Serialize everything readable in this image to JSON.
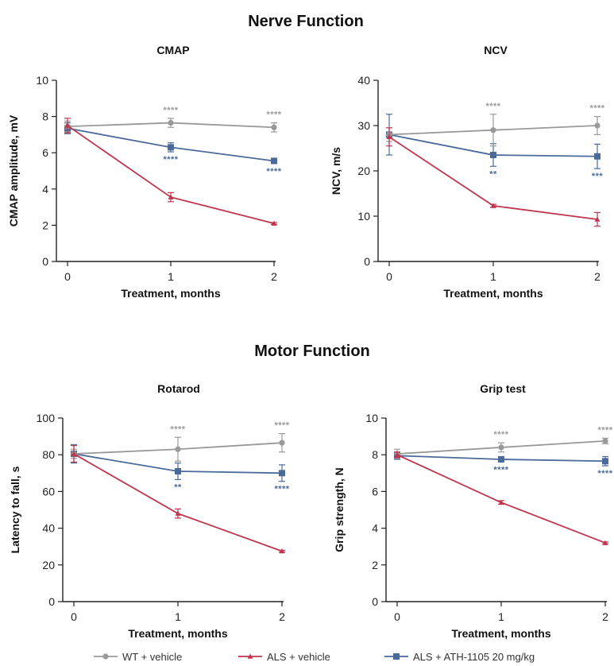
{
  "sections": [
    {
      "title": "Nerve Function"
    },
    {
      "title": "Motor Function"
    }
  ],
  "colors": {
    "wt": "#999999",
    "als": "#c0354e",
    "ath": "#4a6a9a"
  },
  "legend": [
    {
      "label": "WT + vehicle",
      "series": "wt",
      "marker": "circle"
    },
    {
      "label": "ALS + vehicle",
      "series": "als",
      "marker": "triangle"
    },
    {
      "label": "ALS + ATH-1105 20 mg/kg",
      "series": "ath",
      "marker": "square"
    }
  ],
  "chart_data": [
    {
      "type": "line",
      "title": "CMAP",
      "xlabel": "Treatment, months",
      "ylabel": "CMAP amplitude, mV",
      "x": [
        0,
        1,
        2
      ],
      "ylim": [
        0,
        10
      ],
      "yticks": [
        0,
        2,
        4,
        6,
        8,
        10
      ],
      "series": [
        {
          "name": "WT + vehicle",
          "key": "wt",
          "values": [
            7.45,
            7.65,
            7.4
          ],
          "errors": [
            0.3,
            0.25,
            0.25
          ],
          "significance": [
            "",
            "****",
            "****"
          ]
        },
        {
          "name": "ALS + vehicle",
          "key": "als",
          "values": [
            7.5,
            3.55,
            2.1
          ],
          "errors": [
            0.4,
            0.25,
            0.05
          ],
          "significance": [
            "",
            "",
            ""
          ]
        },
        {
          "name": "ALS + ATH-1105 20 mg/kg",
          "key": "ath",
          "values": [
            7.35,
            6.3,
            5.55
          ],
          "errors": [
            0.3,
            0.25,
            0.15
          ],
          "significance": [
            "",
            "****",
            "****"
          ]
        }
      ]
    },
    {
      "type": "line",
      "title": "NCV",
      "xlabel": "Treatment, months",
      "ylabel": "NCV, m/s",
      "x": [
        0,
        1,
        2
      ],
      "ylim": [
        0,
        40
      ],
      "yticks": [
        0,
        10,
        20,
        30,
        40
      ],
      "series": [
        {
          "name": "WT + vehicle",
          "key": "wt",
          "values": [
            28,
            29,
            30
          ],
          "errors": [
            1.5,
            3.5,
            2
          ],
          "significance": [
            "",
            "****",
            "****"
          ]
        },
        {
          "name": "ALS + vehicle",
          "key": "als",
          "values": [
            27.5,
            12.3,
            9.3
          ],
          "errors": [
            2,
            0.3,
            1.5
          ],
          "significance": [
            "",
            "",
            ""
          ]
        },
        {
          "name": "ALS + ATH-1105 20 mg/kg",
          "key": "ath",
          "values": [
            28,
            23.5,
            23.2
          ],
          "errors": [
            4.5,
            2.5,
            2.7
          ],
          "significance": [
            "",
            "**",
            "***"
          ]
        }
      ]
    },
    {
      "type": "line",
      "title": "Rotarod",
      "xlabel": "Treatment, months",
      "ylabel": "Latency to fall, s",
      "x": [
        0,
        1,
        2
      ],
      "ylim": [
        0,
        100
      ],
      "yticks": [
        0,
        20,
        40,
        60,
        80,
        100
      ],
      "series": [
        {
          "name": "WT + vehicle",
          "key": "wt",
          "values": [
            80.5,
            83,
            86.5
          ],
          "errors": [
            2.5,
            6.5,
            5
          ],
          "significance": [
            "",
            "****",
            "****"
          ]
        },
        {
          "name": "ALS + vehicle",
          "key": "als",
          "values": [
            80.5,
            48,
            27.5
          ],
          "errors": [
            4.5,
            2.5,
            0.5
          ],
          "significance": [
            "",
            "",
            ""
          ]
        },
        {
          "name": "ALS + ATH-1105 20 mg/kg",
          "key": "ath",
          "values": [
            80.5,
            71,
            70
          ],
          "errors": [
            5,
            4.5,
            4.5
          ],
          "significance": [
            "",
            "**",
            "****"
          ]
        }
      ]
    },
    {
      "type": "line",
      "title": "Grip test",
      "xlabel": "Treatment, months",
      "ylabel": "Grip strength, N",
      "x": [
        0,
        1,
        2
      ],
      "ylim": [
        0,
        10
      ],
      "yticks": [
        0,
        2,
        4,
        6,
        8,
        10
      ],
      "series": [
        {
          "name": "WT + vehicle",
          "key": "wt",
          "values": [
            8.05,
            8.4,
            8.75
          ],
          "errors": [
            0.25,
            0.25,
            0.15
          ],
          "significance": [
            "",
            "****",
            "****"
          ]
        },
        {
          "name": "ALS + vehicle",
          "key": "als",
          "values": [
            8,
            5.4,
            3.2
          ],
          "errors": [
            0.15,
            0.1,
            0.05
          ],
          "significance": [
            "",
            "",
            ""
          ]
        },
        {
          "name": "ALS + ATH-1105 20 mg/kg",
          "key": "ath",
          "values": [
            7.95,
            7.75,
            7.65
          ],
          "errors": [
            0.2,
            0.15,
            0.25
          ],
          "significance": [
            "",
            "****",
            "****"
          ]
        }
      ]
    }
  ]
}
